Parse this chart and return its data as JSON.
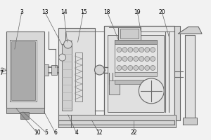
{
  "bg_color": "#f2f2f2",
  "lc": "#666666",
  "white": "#ffffff",
  "light": "#e8e8e8",
  "mid": "#cccccc",
  "dark": "#999999",
  "bg_fill": "#e0e0e0"
}
